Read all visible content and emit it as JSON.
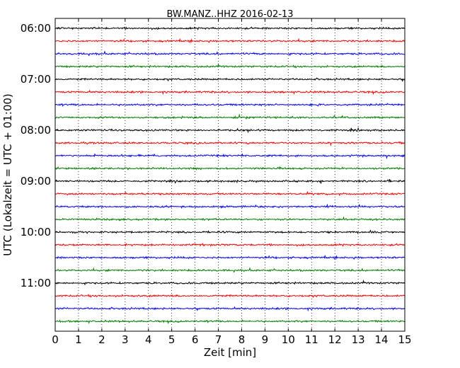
{
  "chart_data": {
    "type": "line",
    "title": "BW.MANZ..HHZ 2016-02-13",
    "xlabel": "Zeit  [min]",
    "ylabel": "UTC (Lokalzeit = UTC + 01:00)",
    "xlim": [
      0,
      15
    ],
    "x_ticks": [
      "0",
      "1",
      "2",
      "3",
      "4",
      "5",
      "6",
      "7",
      "8",
      "9",
      "10",
      "11",
      "12",
      "13",
      "14",
      "15"
    ],
    "y_tick_labels": [
      "06:00",
      "07:00",
      "08:00",
      "09:00",
      "10:00",
      "11:00"
    ],
    "grid": "vertical dotted",
    "trace_colors": [
      "#000000",
      "#ff0000",
      "#0000ff",
      "#007f00"
    ],
    "series": [
      {
        "values": [
          "06:00"
        ]
      },
      {
        "values": [
          "06:15"
        ]
      },
      {
        "values": [
          "06:30"
        ]
      },
      {
        "values": [
          "06:45"
        ]
      },
      {
        "values": [
          "07:00"
        ]
      },
      {
        "values": [
          "07:15"
        ]
      },
      {
        "values": [
          "07:30"
        ]
      },
      {
        "values": [
          "07:45"
        ]
      },
      {
        "values": [
          "08:00"
        ]
      },
      {
        "values": [
          "08:15"
        ]
      },
      {
        "values": [
          "08:30"
        ]
      },
      {
        "values": [
          "08:45"
        ]
      },
      {
        "values": [
          "09:00"
        ]
      },
      {
        "values": [
          "09:15"
        ]
      },
      {
        "values": [
          "09:30"
        ]
      },
      {
        "values": [
          "09:45"
        ]
      },
      {
        "values": [
          "10:00"
        ]
      },
      {
        "values": [
          "10:15"
        ]
      },
      {
        "values": [
          "10:30"
        ]
      },
      {
        "values": [
          "10:45"
        ]
      },
      {
        "values": [
          "11:00"
        ]
      },
      {
        "values": [
          "11:15"
        ]
      },
      {
        "values": [
          "11:30"
        ]
      },
      {
        "values": [
          "11:45"
        ]
      }
    ]
  }
}
